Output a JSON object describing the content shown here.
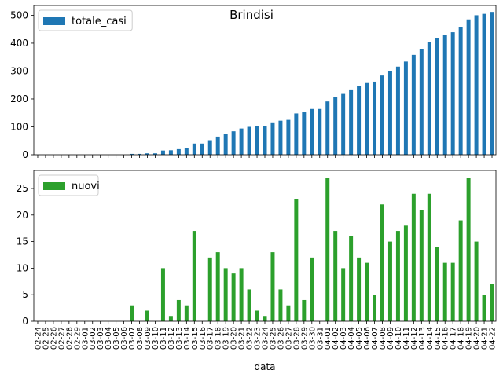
{
  "figure_title": "Brindisi",
  "colors": {
    "top_series": "#1f77b4",
    "bottom_series": "#2ca02c"
  },
  "chart_data": [
    {
      "type": "bar",
      "categories": [
        "02-24",
        "02-25",
        "02-26",
        "02-27",
        "02-28",
        "02-29",
        "03-01",
        "03-02",
        "03-03",
        "03-04",
        "03-05",
        "03-06",
        "03-07",
        "03-08",
        "03-09",
        "03-10",
        "03-11",
        "03-12",
        "03-13",
        "03-14",
        "03-15",
        "03-16",
        "03-17",
        "03-18",
        "03-19",
        "03-20",
        "03-21",
        "03-22",
        "03-23",
        "03-24",
        "03-25",
        "03-26",
        "03-27",
        "03-28",
        "03-29",
        "03-30",
        "03-31",
        "04-01",
        "04-02",
        "04-03",
        "04-04",
        "04-05",
        "04-06",
        "04-07",
        "04-08",
        "04-09",
        "04-10",
        "04-11",
        "04-12",
        "04-13",
        "04-14",
        "04-15",
        "04-16",
        "04-17",
        "04-18",
        "04-19",
        "04-20",
        "04-21",
        "04-22"
      ],
      "series": [
        {
          "name": "totale_casi",
          "values": [
            0,
            0,
            0,
            0,
            0,
            0,
            0,
            0,
            0,
            0,
            0,
            0,
            3,
            3,
            5,
            5,
            15,
            16,
            20,
            23,
            40,
            40,
            52,
            65,
            75,
            84,
            94,
            100,
            102,
            103,
            116,
            122,
            125,
            148,
            152,
            164,
            164,
            191,
            208,
            218,
            234,
            246,
            257,
            262,
            284,
            299,
            316,
            334,
            358,
            379,
            403,
            417,
            428,
            439,
            458,
            485,
            500,
            505,
            512
          ]
        }
      ],
      "ylim": [
        0,
        535
      ],
      "yticks": [
        0,
        100,
        200,
        300,
        400,
        500
      ],
      "legend": "upper-left",
      "grid": false
    },
    {
      "type": "bar",
      "categories": [
        "02-24",
        "02-25",
        "02-26",
        "02-27",
        "02-28",
        "02-29",
        "03-01",
        "03-02",
        "03-03",
        "03-04",
        "03-05",
        "03-06",
        "03-07",
        "03-08",
        "03-09",
        "03-10",
        "03-11",
        "03-12",
        "03-13",
        "03-14",
        "03-15",
        "03-16",
        "03-17",
        "03-18",
        "03-19",
        "03-20",
        "03-21",
        "03-22",
        "03-23",
        "03-24",
        "03-25",
        "03-26",
        "03-27",
        "03-28",
        "03-29",
        "03-30",
        "03-31",
        "04-01",
        "04-02",
        "04-03",
        "04-04",
        "04-05",
        "04-06",
        "04-07",
        "04-08",
        "04-09",
        "04-10",
        "04-11",
        "04-12",
        "04-13",
        "04-14",
        "04-15",
        "04-16",
        "04-17",
        "04-18",
        "04-19",
        "04-20",
        "04-21",
        "04-22"
      ],
      "series": [
        {
          "name": "nuovi",
          "values": [
            0,
            0,
            0,
            0,
            0,
            0,
            0,
            0,
            0,
            0,
            0,
            0,
            3,
            0,
            2,
            0,
            10,
            1,
            4,
            3,
            17,
            0,
            12,
            13,
            10,
            9,
            10,
            6,
            2,
            1,
            13,
            6,
            3,
            23,
            4,
            12,
            0,
            27,
            17,
            10,
            16,
            12,
            11,
            5,
            22,
            15,
            17,
            18,
            24,
            21,
            24,
            14,
            11,
            11,
            19,
            27,
            15,
            5,
            7
          ]
        }
      ],
      "xlabel": "data",
      "ylim": [
        0,
        28.4
      ],
      "yticks": [
        0,
        5,
        10,
        15,
        20,
        25
      ],
      "legend": "upper-left",
      "grid": false
    }
  ]
}
